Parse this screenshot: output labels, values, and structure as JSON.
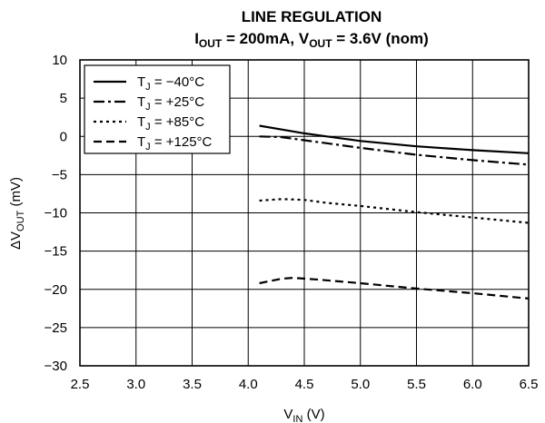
{
  "chart_data": {
    "type": "line",
    "title": "LINE REGULATION",
    "subtitle_parts": [
      "I",
      "OUT",
      " = 200mA, V",
      "OUT",
      " = 3.6V (nom)"
    ],
    "xlabel_parts": [
      "V",
      "IN",
      " (V)"
    ],
    "ylabel_parts": [
      "ΔV",
      "OUT",
      " (mV)"
    ],
    "xlim": [
      2.5,
      6.5
    ],
    "ylim": [
      -30,
      10
    ],
    "xticks": [
      2.5,
      3.0,
      3.5,
      4.0,
      4.5,
      5.0,
      5.5,
      6.0,
      6.5
    ],
    "xtick_labels": [
      "2.5",
      "3.0",
      "3.5",
      "4.0",
      "4.5",
      "5.0",
      "5.5",
      "6.0",
      "6.5"
    ],
    "yticks": [
      10,
      5,
      0,
      -5,
      -10,
      -15,
      -20,
      -25,
      -30
    ],
    "ytick_labels": [
      "10",
      "5",
      "0",
      "−5",
      "−10",
      "−15",
      "−20",
      "−25",
      "−30"
    ],
    "grid": true,
    "legend_position": "top-left",
    "series": [
      {
        "name_parts": [
          "T",
          "J",
          " = −40°C"
        ],
        "dash": "solid",
        "x": [
          4.1,
          4.3,
          4.5,
          4.7,
          5.0,
          5.5,
          6.0,
          6.5
        ],
        "y": [
          1.4,
          0.9,
          0.4,
          0.0,
          -0.6,
          -1.3,
          -1.8,
          -2.2
        ]
      },
      {
        "name_parts": [
          "T",
          "J",
          " = +25°C"
        ],
        "dash": "dashdot",
        "x": [
          4.1,
          4.3,
          4.5,
          4.7,
          5.0,
          5.5,
          6.0,
          6.5
        ],
        "y": [
          0.0,
          -0.1,
          -0.5,
          -0.9,
          -1.5,
          -2.4,
          -3.1,
          -3.7
        ]
      },
      {
        "name_parts": [
          "T",
          "J",
          " = +85°C"
        ],
        "dash": "dotted",
        "x": [
          4.1,
          4.3,
          4.5,
          4.7,
          5.0,
          5.5,
          6.0,
          6.5
        ],
        "y": [
          -8.4,
          -8.2,
          -8.3,
          -8.7,
          -9.1,
          -9.9,
          -10.6,
          -11.3
        ]
      },
      {
        "name_parts": [
          "T",
          "J",
          " = +125°C"
        ],
        "dash": "dashed",
        "x": [
          4.1,
          4.3,
          4.4,
          4.6,
          5.0,
          5.5,
          6.0,
          6.5
        ],
        "y": [
          -19.2,
          -18.6,
          -18.5,
          -18.7,
          -19.2,
          -19.9,
          -20.5,
          -21.2
        ]
      }
    ]
  }
}
